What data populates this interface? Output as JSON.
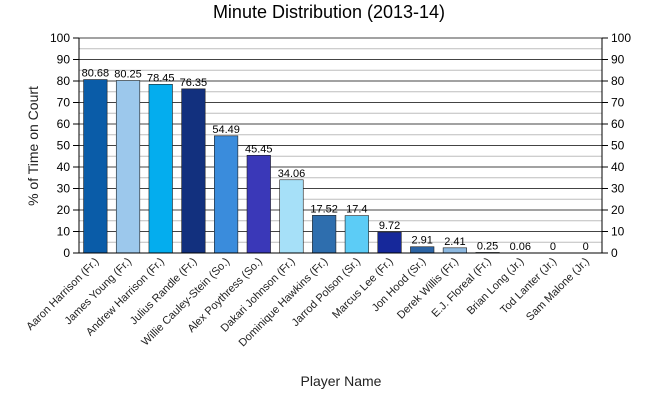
{
  "chart_data": {
    "type": "bar",
    "title": "Minute Distribution (2013-14)",
    "xlabel": "Player Name",
    "ylabel": "% of Time on Court",
    "ylim": [
      0,
      100
    ],
    "yticks": [
      0,
      10,
      20,
      30,
      40,
      50,
      60,
      70,
      80,
      90,
      100
    ],
    "grid": true,
    "categories": [
      "Aaron Harrison (Fr.)",
      "James Young (Fr.)",
      "Andrew Harrison (Fr.)",
      "Julius Randle (Fr.)",
      "Willie Cauley-Stein (So.)",
      "Alex Poythress (So.)",
      "Dakari Johnson (Fr.)",
      "Dominique Hawkins (Fr.)",
      "Jarrod Polson (Sr.)",
      "Marcus Lee (Fr.)",
      "Jon Hood (Sr.)",
      "Derek Willis (Fr.)",
      "E.J. Floreal (Fr.)",
      "Brian Long (Jr.)",
      "Tod Lanter (Jr.)",
      "Sam Malone (Jr.)"
    ],
    "values": [
      80.68,
      80.25,
      78.45,
      76.35,
      54.49,
      45.45,
      34.06,
      17.52,
      17.4,
      9.72,
      2.91,
      2.41,
      0.25,
      0.06,
      0,
      0
    ],
    "value_labels": [
      "80.68",
      "80.25",
      "78.45",
      "76.35",
      "54.49",
      "45.45",
      "34.06",
      "17.52",
      "17.4",
      "9.72",
      "2.91",
      "2.41",
      "0.25",
      "0.06",
      "0",
      "0"
    ],
    "colors": [
      "#0a5ca8",
      "#9cc8ec",
      "#04adee",
      "#12307e",
      "#3a8cdc",
      "#3a38b8",
      "#a6e0f8",
      "#2e6eae",
      "#5cccf6",
      "#16289a",
      "#2c64a4",
      "#8cb8e0",
      "#04a8ec",
      "#1a2a86",
      "#3a7ed0",
      "#3434b4"
    ]
  }
}
